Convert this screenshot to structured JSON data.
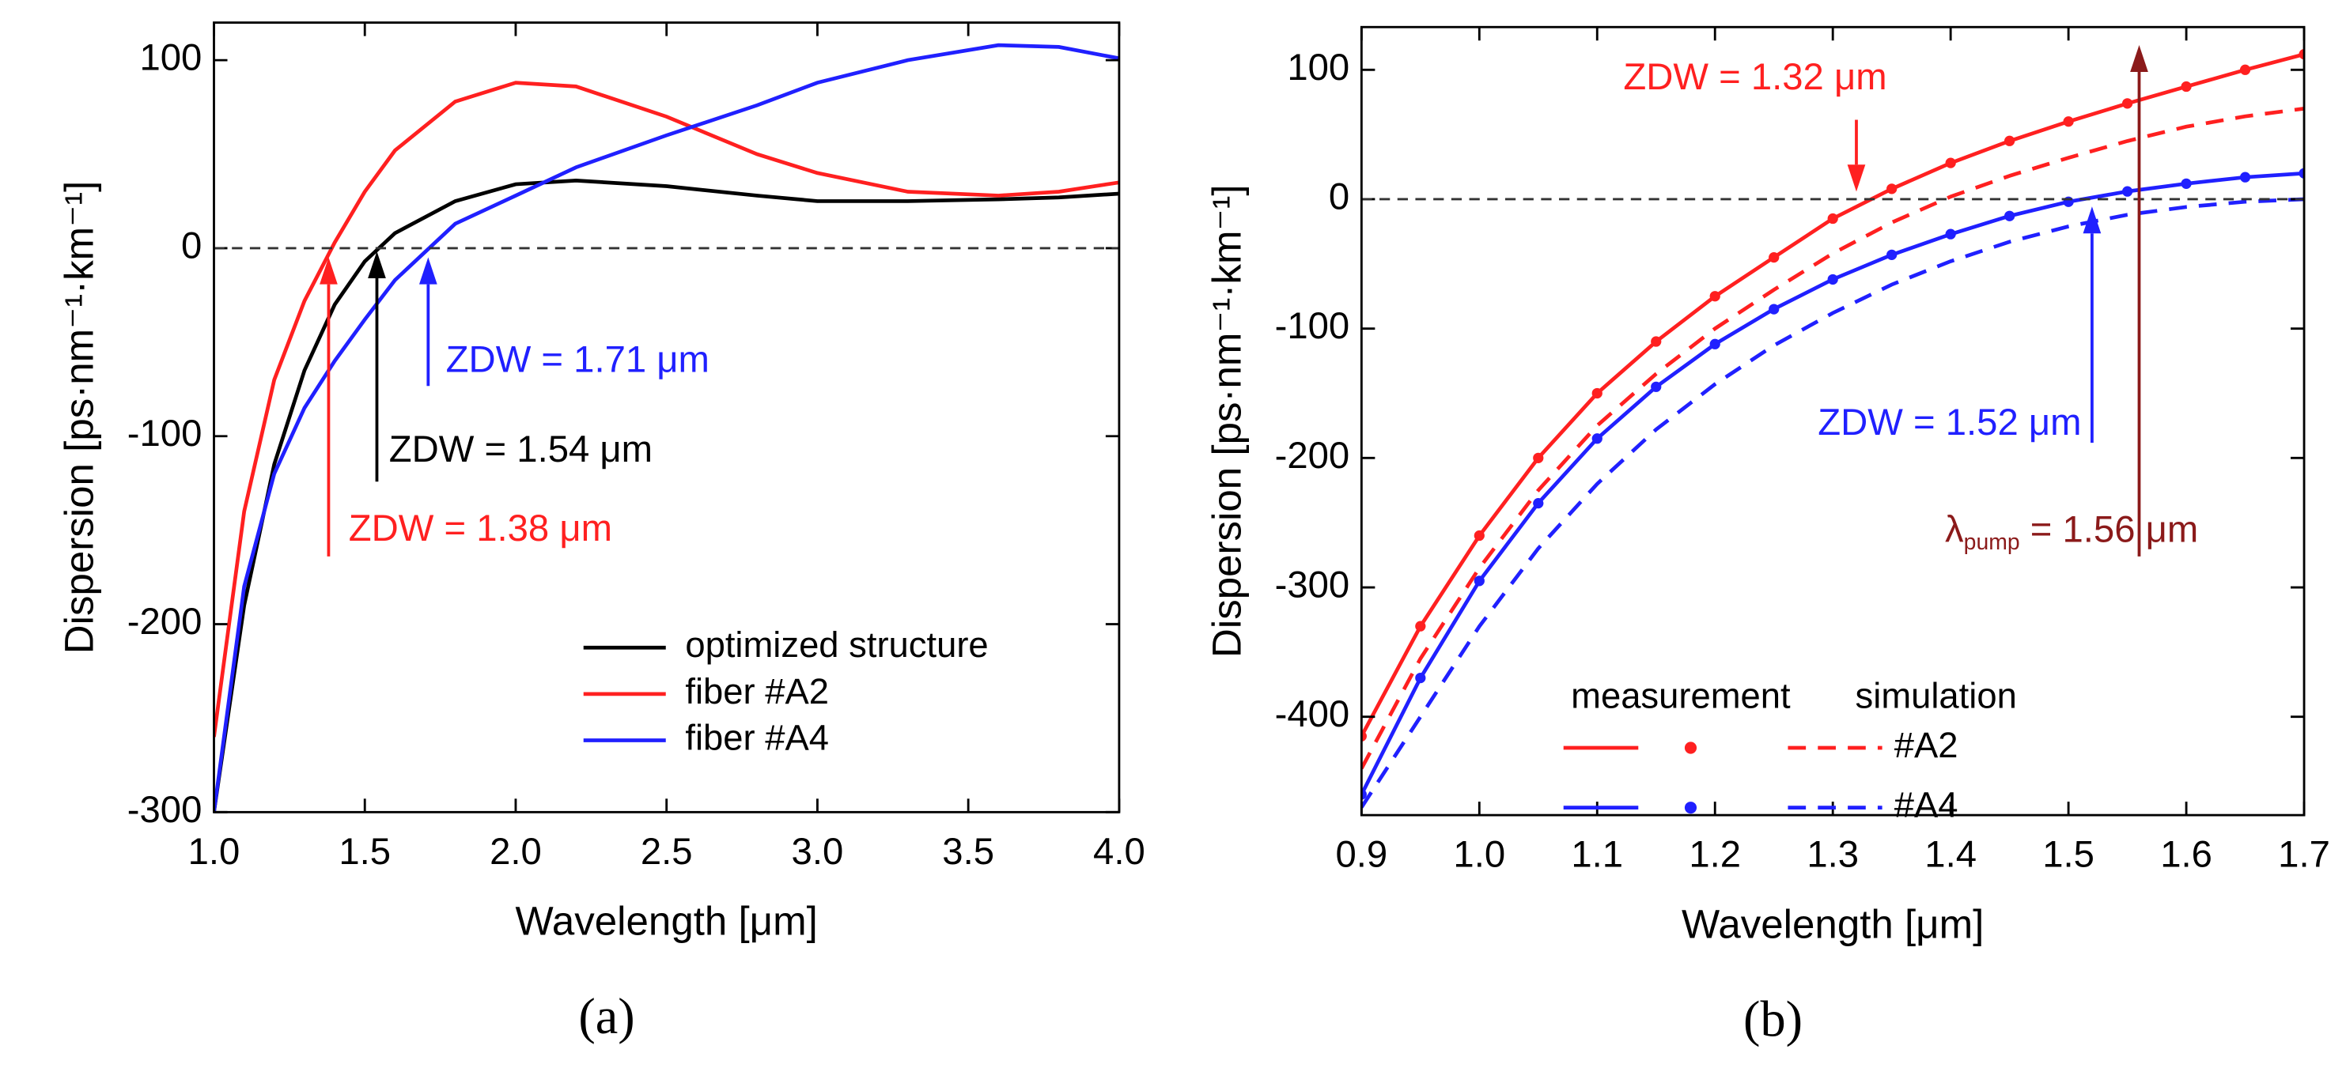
{
  "chart_data": [
    {
      "type": "line",
      "label": "(a)",
      "xlabel": "Wavelength [μm]",
      "ylabel": "Dispersion [ps·nm⁻¹·km⁻¹]",
      "xlim": [
        1.0,
        4.0
      ],
      "ylim": [
        -300,
        120
      ],
      "xticks": [
        {
          "value": 1.0,
          "label": "1.0"
        },
        1.5,
        {
          "value": 2.0,
          "label": "2.0"
        },
        2.5,
        {
          "value": 3.0,
          "label": "3.0"
        },
        3.5,
        {
          "value": 4.0,
          "label": "4.0"
        }
      ],
      "yticks": [
        -300,
        -200,
        -100,
        0,
        100
      ],
      "zero_line": true,
      "legend": "lower right",
      "x": [
        1.0,
        1.1,
        1.2,
        1.3,
        1.4,
        1.5,
        1.6,
        1.8,
        2.0,
        2.2,
        2.5,
        2.8,
        3.0,
        3.3,
        3.6,
        3.8,
        4.0
      ],
      "series": [
        {
          "name": "optimized structure",
          "color": "#000000",
          "values": [
            -300,
            -190,
            -115,
            -65,
            -30,
            -7,
            8,
            25,
            34,
            36,
            33,
            28,
            25,
            25,
            26,
            27,
            29
          ]
        },
        {
          "name": "fiber #A2",
          "color": "#ff2020",
          "values": [
            -260,
            -140,
            -70,
            -28,
            3,
            30,
            52,
            78,
            88,
            86,
            70,
            50,
            40,
            30,
            28,
            30,
            35
          ]
        },
        {
          "name": "fiber #A4",
          "color": "#2020ff",
          "values": [
            -300,
            -180,
            -120,
            -85,
            -60,
            -38,
            -17,
            13,
            28,
            43,
            60,
            76,
            88,
            100,
            108,
            107,
            101
          ]
        }
      ],
      "annotations": [
        {
          "text": "ZDW = 1.38 μm",
          "x": 1.38,
          "color": "#ff2020"
        },
        {
          "text": "ZDW = 1.54 μm",
          "x": 1.54,
          "color": "#000000"
        },
        {
          "text": "ZDW = 1.71 μm",
          "x": 1.71,
          "color": "#2020ff"
        }
      ]
    },
    {
      "type": "line",
      "label": "(b)",
      "xlabel": "Wavelength [μm]",
      "ylabel": "Dispersion [ps·nm⁻¹·km⁻¹]",
      "xlim": [
        0.9,
        1.7
      ],
      "ylim": [
        -476,
        133
      ],
      "xticks": [
        0.9,
        {
          "value": 1.0,
          "label": "1.0"
        },
        1.1,
        1.2,
        1.3,
        1.4,
        1.5,
        1.6,
        1.7
      ],
      "yticks": [
        -400,
        -300,
        -200,
        -100,
        0,
        100
      ],
      "zero_line": true,
      "legend_headers": [
        "measurement",
        "simulation"
      ],
      "x": [
        0.9,
        0.95,
        1.0,
        1.05,
        1.1,
        1.15,
        1.2,
        1.25,
        1.3,
        1.35,
        1.4,
        1.45,
        1.5,
        1.55,
        1.6,
        1.65,
        1.7
      ],
      "series": [
        {
          "color": "#ff2020",
          "style": "solid",
          "markers": true,
          "values": [
            -415,
            -330,
            -260,
            -200,
            -150,
            -110,
            -75,
            -45,
            -15,
            8,
            28,
            45,
            60,
            74,
            87,
            100,
            112
          ]
        },
        {
          "name": "#A2",
          "color": "#ff2020",
          "style": "dashed",
          "values": [
            -440,
            -355,
            -285,
            -225,
            -175,
            -135,
            -100,
            -70,
            -42,
            -18,
            2,
            18,
            32,
            45,
            56,
            64,
            70
          ]
        },
        {
          "color": "#2020ff",
          "style": "solid",
          "markers": true,
          "values": [
            -460,
            -370,
            -295,
            -235,
            -185,
            -145,
            -112,
            -85,
            -62,
            -43,
            -27,
            -13,
            -2,
            6,
            12,
            17,
            20
          ]
        },
        {
          "name": "#A4",
          "color": "#2020ff",
          "style": "dashed",
          "values": [
            -470,
            -400,
            -330,
            -270,
            -220,
            -178,
            -143,
            -113,
            -88,
            -66,
            -48,
            -33,
            -21,
            -12,
            -6,
            -2,
            0
          ]
        }
      ],
      "annotations": [
        {
          "text": "ZDW = 1.32 μm",
          "x": 1.32,
          "color": "#ff2020"
        },
        {
          "text": "ZDW = 1.52 μm",
          "x": 1.52,
          "color": "#2020ff"
        },
        {
          "text": "λ",
          "sub": "pump",
          "rest": " = 1.56 μm",
          "x": 1.56,
          "color": "#8b1a1a"
        }
      ]
    }
  ]
}
